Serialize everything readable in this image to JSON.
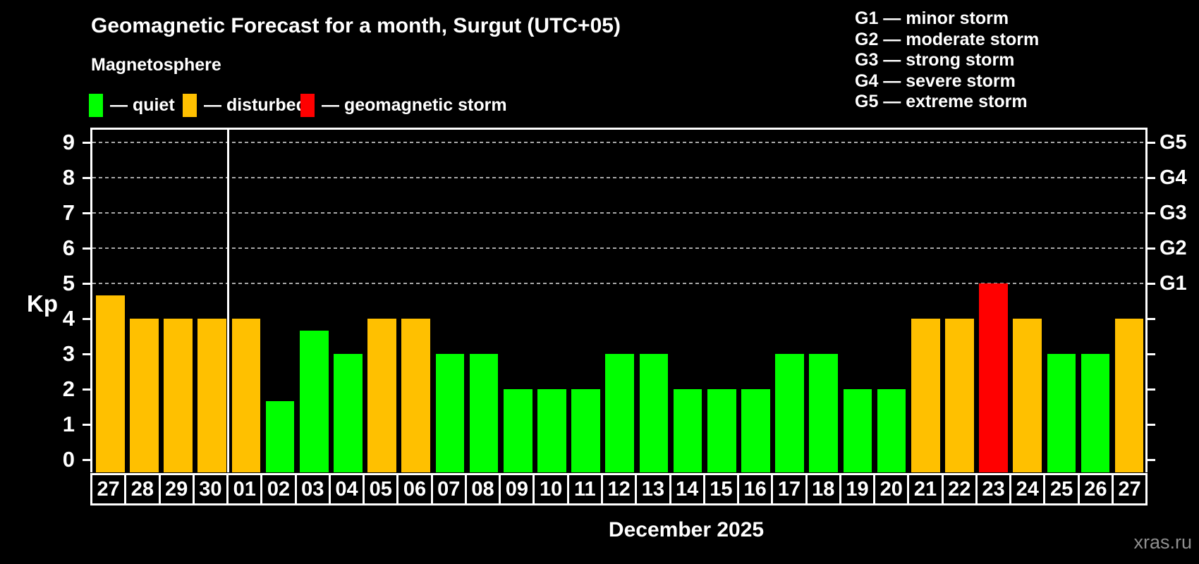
{
  "header": {
    "subtitle": "Magnetosphere"
  },
  "legend": {
    "items": [
      {
        "status": "quiet",
        "label": "— quiet",
        "color": "#00FF00"
      },
      {
        "status": "disturbed",
        "label": "— disturbed",
        "color": "#FFC000"
      },
      {
        "status": "storm",
        "label": "— geomagnetic storm",
        "color": "#FF0000"
      }
    ]
  },
  "g_legend": [
    "G1 — minor storm",
    "G2 — moderate storm",
    "G3 — strong storm",
    "G4 — severe storm",
    "G5 — extreme storm"
  ],
  "watermark": "xras.ru",
  "chart_data": {
    "type": "bar",
    "title": "Geomagnetic Forecast for a month, Surgut (UTC+05)",
    "ylabel": "Kp",
    "xlabel": "December 2025",
    "ylim": [
      0,
      9
    ],
    "y_tick_labels": [
      "0",
      "1",
      "2",
      "3",
      "4",
      "5",
      "6",
      "7",
      "8",
      "9"
    ],
    "grid_values": [
      5,
      6,
      7,
      8,
      9
    ],
    "grid_style": "dashed",
    "legend_position": "top",
    "right_axis_labels": [
      {
        "value": 5,
        "label": "G1"
      },
      {
        "value": 6,
        "label": "G2"
      },
      {
        "value": 7,
        "label": "G3"
      },
      {
        "value": 8,
        "label": "G4"
      },
      {
        "value": 9,
        "label": "G5"
      }
    ],
    "status_colors": {
      "quiet": "#00FF00",
      "disturbed": "#FFC000",
      "storm": "#FF0000"
    },
    "month_boundary_after_bar": 4,
    "categories": [
      "27",
      "28",
      "29",
      "30",
      "01",
      "02",
      "03",
      "04",
      "05",
      "06",
      "07",
      "08",
      "09",
      "10",
      "11",
      "12",
      "13",
      "14",
      "15",
      "16",
      "17",
      "18",
      "19",
      "20",
      "21",
      "22",
      "23",
      "24",
      "25",
      "26",
      "27"
    ],
    "bars": [
      {
        "day": "27",
        "value": 4.67,
        "status": "disturbed"
      },
      {
        "day": "28",
        "value": 4,
        "status": "disturbed"
      },
      {
        "day": "29",
        "value": 4,
        "status": "disturbed"
      },
      {
        "day": "30",
        "value": 4,
        "status": "disturbed"
      },
      {
        "day": "01",
        "value": 4,
        "status": "disturbed"
      },
      {
        "day": "02",
        "value": 1.67,
        "status": "quiet"
      },
      {
        "day": "03",
        "value": 3.67,
        "status": "quiet"
      },
      {
        "day": "04",
        "value": 3,
        "status": "quiet"
      },
      {
        "day": "05",
        "value": 4,
        "status": "disturbed"
      },
      {
        "day": "06",
        "value": 4,
        "status": "disturbed"
      },
      {
        "day": "07",
        "value": 3,
        "status": "quiet"
      },
      {
        "day": "08",
        "value": 3,
        "status": "quiet"
      },
      {
        "day": "09",
        "value": 2,
        "status": "quiet"
      },
      {
        "day": "10",
        "value": 2,
        "status": "quiet"
      },
      {
        "day": "11",
        "value": 2,
        "status": "quiet"
      },
      {
        "day": "12",
        "value": 3,
        "status": "quiet"
      },
      {
        "day": "13",
        "value": 3,
        "status": "quiet"
      },
      {
        "day": "14",
        "value": 2,
        "status": "quiet"
      },
      {
        "day": "15",
        "value": 2,
        "status": "quiet"
      },
      {
        "day": "16",
        "value": 2,
        "status": "quiet"
      },
      {
        "day": "17",
        "value": 3,
        "status": "quiet"
      },
      {
        "day": "18",
        "value": 3,
        "status": "quiet"
      },
      {
        "day": "19",
        "value": 2,
        "status": "quiet"
      },
      {
        "day": "20",
        "value": 2,
        "status": "quiet"
      },
      {
        "day": "21",
        "value": 4,
        "status": "disturbed"
      },
      {
        "day": "22",
        "value": 4,
        "status": "disturbed"
      },
      {
        "day": "23",
        "value": 5,
        "status": "storm"
      },
      {
        "day": "24",
        "value": 4,
        "status": "disturbed"
      },
      {
        "day": "25",
        "value": 3,
        "status": "quiet"
      },
      {
        "day": "26",
        "value": 3,
        "status": "quiet"
      },
      {
        "day": "27",
        "value": 4,
        "status": "disturbed"
      }
    ]
  }
}
